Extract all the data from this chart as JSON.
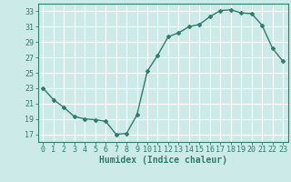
{
  "x": [
    0,
    1,
    2,
    3,
    4,
    5,
    6,
    7,
    8,
    9,
    10,
    11,
    12,
    13,
    14,
    15,
    16,
    17,
    18,
    19,
    20,
    21,
    22,
    23
  ],
  "y": [
    23.0,
    21.5,
    20.5,
    19.3,
    19.0,
    18.9,
    18.7,
    17.0,
    17.1,
    19.5,
    25.2,
    27.3,
    29.7,
    30.2,
    31.0,
    31.3,
    32.3,
    33.1,
    33.2,
    32.8,
    32.7,
    31.2,
    28.2,
    26.5
  ],
  "line_color": "#2e7d6e",
  "marker": "D",
  "marker_size": 2.0,
  "bg_color": "#cceae7",
  "grid_color": "#ffffff",
  "xlabel": "Humidex (Indice chaleur)",
  "ylim": [
    16,
    34
  ],
  "xlim": [
    -0.5,
    23.5
  ],
  "yticks": [
    17,
    19,
    21,
    23,
    25,
    27,
    29,
    31,
    33
  ],
  "xticks": [
    0,
    1,
    2,
    3,
    4,
    5,
    6,
    7,
    8,
    9,
    10,
    11,
    12,
    13,
    14,
    15,
    16,
    17,
    18,
    19,
    20,
    21,
    22,
    23
  ],
  "tick_color": "#2e7d6e",
  "label_color": "#2e7d6e",
  "xlabel_fontsize": 7,
  "tick_fontsize": 6.0,
  "linewidth": 1.0
}
